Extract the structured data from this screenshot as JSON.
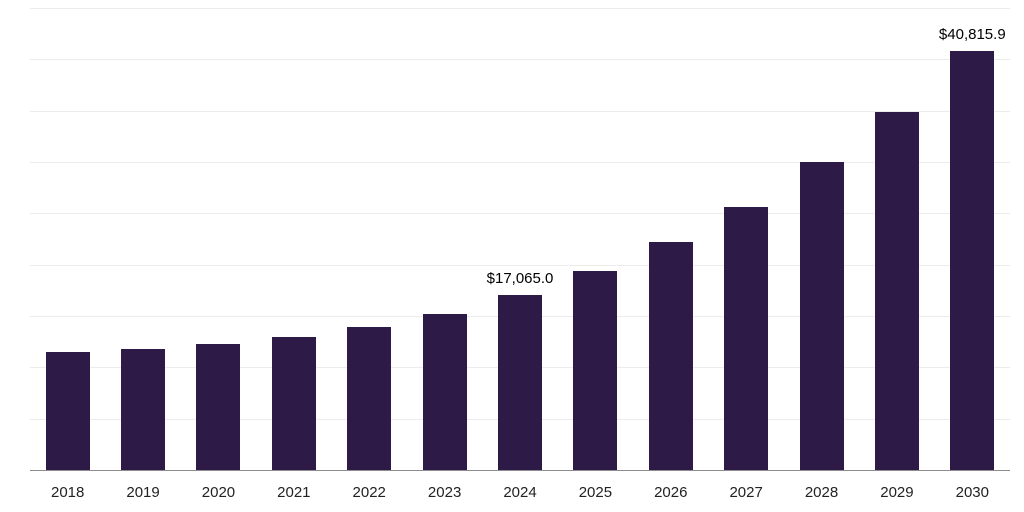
{
  "chart_data": {
    "type": "bar",
    "title": "",
    "xlabel": "",
    "ylabel": "",
    "categories": [
      "2018",
      "2019",
      "2020",
      "2021",
      "2022",
      "2023",
      "2024",
      "2025",
      "2026",
      "2027",
      "2028",
      "2029",
      "2030"
    ],
    "values": [
      11500,
      11800,
      12300,
      13000,
      13900,
      15200,
      17065.0,
      19350,
      22200,
      25650,
      30000,
      34850,
      40815.9
    ],
    "value_labels": [
      null,
      null,
      null,
      null,
      null,
      null,
      "$17,065.0",
      null,
      null,
      null,
      null,
      null,
      "$40,815.9"
    ],
    "ylim": [
      0,
      45000
    ],
    "grid_step": 5000,
    "grid": true,
    "legend_position": "none",
    "bar_color": "#2e1a47",
    "grid_color": "#ececec",
    "axis_line_color": "#8c8c8c",
    "tick_label_color": "#222222",
    "value_label_color": "#000000"
  }
}
